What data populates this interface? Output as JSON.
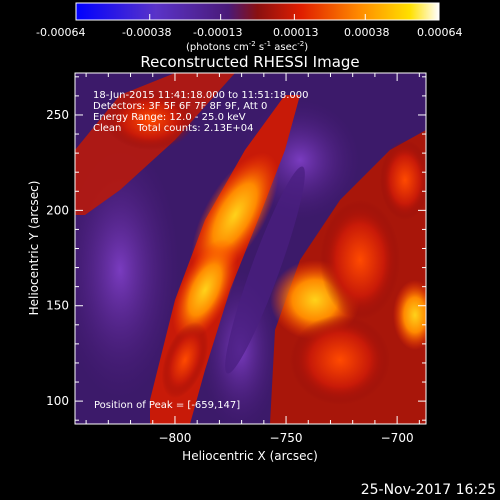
{
  "colorbar": {
    "ticks": [
      "-0.00064",
      "-0.00038",
      "-0.00013",
      "0.00013",
      "0.00038",
      "0.00064"
    ],
    "unit_main": "(photons cm",
    "unit_sup1": "-2",
    "unit_mid": " s",
    "unit_sup2": "-1",
    "unit_end": " asec",
    "unit_sup3": "-2",
    "unit_close": ")"
  },
  "annotations": {
    "time_range": "18-Jun-2015 11:41:18.000 to 11:51:18.000",
    "detectors": "Detectors: 3F 5F 6F 7F 8F 9F, Att 0",
    "energy": "Energy Range: 12.0 - 25.0 keV",
    "clean": "Clean     Total counts: 2.13E+04",
    "peak": "Position of Peak = [-659,147]"
  },
  "footer": {
    "date": "25-Nov-2017 16:25"
  },
  "colors": {
    "background": "#000000",
    "colormap": [
      "#0000ff",
      "#6a2fb0",
      "#3b1a66",
      "#b41a10",
      "#ff5a00",
      "#ffd200",
      "#ffffff"
    ]
  },
  "chart_data": {
    "type": "heatmap",
    "title": "Reconstructed RHESSI Image",
    "xlabel": "Heliocentric X (arcsec)",
    "ylabel": "Heliocentric Y (arcsec)",
    "xlim": [
      -845,
      -687
    ],
    "ylim": [
      88,
      272
    ],
    "x_ticks": [
      -800,
      -750,
      -700
    ],
    "x_tick_labels": [
      "−800",
      "−750",
      "−700"
    ],
    "y_ticks": [
      100,
      150,
      200,
      250
    ],
    "y_tick_labels": [
      "100",
      "150",
      "200",
      "250"
    ],
    "zlim": [
      -0.00064,
      0.00064
    ],
    "peak": [
      -659,
      147
    ],
    "grid": false
  }
}
